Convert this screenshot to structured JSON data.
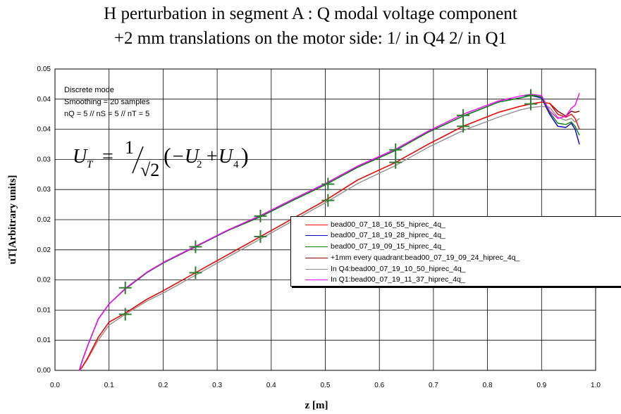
{
  "title_line1": "H perturbation in segment A : Q modal voltage component",
  "title_line2": "+2 mm translations on the motor side: 1/ in Q4 2/ in Q1",
  "notes": [
    "Discrete mode",
    "Smoothing = 20 samples",
    "nQ = 5 // nS = 5 // nT = 5"
  ],
  "formula": {
    "lhs": "U",
    "lhs_sub": "T",
    "eq": "=",
    "num": "1",
    "den": "√2",
    "body_open": "(",
    "minus": "−U",
    "sub2": "2",
    "plus": "+U",
    "sub4": "4",
    "body_close": ")"
  },
  "colors": {
    "red": "#ff0000",
    "blue": "#0000cc",
    "green": "#008000",
    "darkred": "#800000",
    "gray": "#909090",
    "magenta": "#ff00ff",
    "marker": "#2e7d32"
  },
  "chart_data": {
    "type": "line",
    "title": "H perturbation in segment A : Q modal voltage component\n+2 mm translations on the motor side: 1/ in Q4 2/ in Q1",
    "xlabel": "z [m]",
    "ylabel": "uT[Arbitrary units]",
    "xlim": [
      0.0,
      1.0
    ],
    "ylim": [
      0.0,
      0.05
    ],
    "x_ticks": [
      "0.0",
      "0.1",
      "0.2",
      "0.3",
      "0.4",
      "0.5",
      "0.6",
      "0.7",
      "0.8",
      "0.9",
      "1.0"
    ],
    "y_ticks": [
      "0.00",
      "0.01",
      "0.01",
      "0.02",
      "0.02",
      "0.02",
      "0.03",
      "0.03",
      "0.04",
      "0.04",
      "0.05"
    ],
    "grid": true,
    "legend_position": "right",
    "series": [
      {
        "name": "bead00_07_18_16_55_hiprec_4q_",
        "color": "red",
        "x": [
          0.045,
          0.05,
          0.06,
          0.08,
          0.1,
          0.13,
          0.17,
          0.2,
          0.26,
          0.32,
          0.38,
          0.44,
          0.5,
          0.56,
          0.63,
          0.69,
          0.755,
          0.82,
          0.86,
          0.88,
          0.9,
          0.915,
          0.93,
          0.945,
          0.955,
          0.962,
          0.97
        ],
        "y": [
          0.0,
          0.0005,
          0.002,
          0.0055,
          0.008,
          0.0095,
          0.0118,
          0.0132,
          0.0162,
          0.0192,
          0.0222,
          0.0252,
          0.0282,
          0.0316,
          0.0345,
          0.0375,
          0.0405,
          0.0428,
          0.0438,
          0.0442,
          0.0445,
          0.0443,
          0.0425,
          0.042,
          0.0425,
          0.0418,
          0.04
        ]
      },
      {
        "name": "bead00_07_18_19_28_hiprec_4q_",
        "color": "blue",
        "x": [
          0.045,
          0.05,
          0.06,
          0.08,
          0.1,
          0.13,
          0.17,
          0.2,
          0.26,
          0.32,
          0.38,
          0.44,
          0.5,
          0.56,
          0.63,
          0.69,
          0.755,
          0.82,
          0.86,
          0.88,
          0.9,
          0.915,
          0.93,
          0.945,
          0.955,
          0.962,
          0.97
        ],
        "y": [
          0.0,
          0.0015,
          0.004,
          0.0085,
          0.011,
          0.0135,
          0.0162,
          0.0178,
          0.0205,
          0.0232,
          0.0255,
          0.0282,
          0.0308,
          0.0337,
          0.0365,
          0.0395,
          0.0422,
          0.0445,
          0.0452,
          0.0456,
          0.0452,
          0.0425,
          0.0405,
          0.0403,
          0.041,
          0.04,
          0.0375
        ]
      },
      {
        "name": "bead00_07_19_09_15_hiprec_4q_",
        "color": "green",
        "x": [
          0.045,
          0.05,
          0.06,
          0.08,
          0.1,
          0.13,
          0.17,
          0.2,
          0.26,
          0.32,
          0.38,
          0.44,
          0.5,
          0.56,
          0.63,
          0.69,
          0.755,
          0.82,
          0.86,
          0.88,
          0.9,
          0.915,
          0.93,
          0.945,
          0.955,
          0.962,
          0.97
        ],
        "y": [
          0.0,
          0.0015,
          0.004,
          0.0085,
          0.011,
          0.0135,
          0.0162,
          0.0178,
          0.0205,
          0.0232,
          0.0255,
          0.0282,
          0.0308,
          0.0337,
          0.0365,
          0.0395,
          0.0422,
          0.0445,
          0.0452,
          0.0456,
          0.0454,
          0.0428,
          0.041,
          0.0408,
          0.0412,
          0.0405,
          0.039
        ]
      },
      {
        "name": "+1mm every quadrant:bead00_07_19_09_24_hiprec_4q_",
        "color": "darkred",
        "x": [
          0.045,
          0.05,
          0.06,
          0.08,
          0.1,
          0.13,
          0.17,
          0.2,
          0.26,
          0.32,
          0.38,
          0.44,
          0.5,
          0.56,
          0.63,
          0.69,
          0.755,
          0.82,
          0.86,
          0.88,
          0.9,
          0.915,
          0.93,
          0.945,
          0.955,
          0.962,
          0.97
        ],
        "y": [
          0.0,
          0.0005,
          0.002,
          0.0055,
          0.008,
          0.0095,
          0.0118,
          0.0132,
          0.0162,
          0.0192,
          0.0222,
          0.0252,
          0.0282,
          0.0316,
          0.0345,
          0.0375,
          0.0405,
          0.0428,
          0.0438,
          0.0442,
          0.0445,
          0.0443,
          0.043,
          0.0422,
          0.043,
          0.0428,
          0.043
        ]
      },
      {
        "name": "In Q4:bead00_07_19_10_50_hiprec_4q_",
        "color": "gray",
        "x": [
          0.045,
          0.05,
          0.06,
          0.08,
          0.1,
          0.13,
          0.17,
          0.2,
          0.26,
          0.32,
          0.38,
          0.44,
          0.5,
          0.56,
          0.63,
          0.69,
          0.755,
          0.82,
          0.86,
          0.88,
          0.9,
          0.915,
          0.93,
          0.945,
          0.955,
          0.962,
          0.97
        ],
        "y": [
          0.0,
          0.0005,
          0.0018,
          0.005,
          0.0075,
          0.0093,
          0.0115,
          0.0128,
          0.0158,
          0.0188,
          0.0218,
          0.0248,
          0.0278,
          0.031,
          0.034,
          0.037,
          0.0398,
          0.042,
          0.0432,
          0.0436,
          0.0438,
          0.0436,
          0.042,
          0.0415,
          0.0418,
          0.0412,
          0.0418
        ]
      },
      {
        "name": "In Q1:bead00_07_19_11_37_hiprec_4q_",
        "color": "magenta",
        "x": [
          0.045,
          0.05,
          0.06,
          0.08,
          0.1,
          0.13,
          0.17,
          0.2,
          0.26,
          0.32,
          0.38,
          0.44,
          0.5,
          0.56,
          0.63,
          0.69,
          0.755,
          0.82,
          0.86,
          0.88,
          0.9,
          0.915,
          0.93,
          0.945,
          0.955,
          0.962,
          0.97
        ],
        "y": [
          0.0,
          0.0015,
          0.004,
          0.0085,
          0.011,
          0.0136,
          0.0163,
          0.0179,
          0.0206,
          0.0233,
          0.0257,
          0.0284,
          0.031,
          0.0339,
          0.0367,
          0.0397,
          0.0425,
          0.0447,
          0.0455,
          0.0458,
          0.0456,
          0.043,
          0.0418,
          0.0422,
          0.0435,
          0.044,
          0.046
        ]
      }
    ],
    "markers": {
      "x": [
        0.13,
        0.13,
        0.26,
        0.26,
        0.38,
        0.38,
        0.505,
        0.505,
        0.63,
        0.63,
        0.755,
        0.755,
        0.88,
        0.88
      ],
      "y": [
        0.0137,
        0.0093,
        0.0205,
        0.0162,
        0.0256,
        0.0222,
        0.0309,
        0.0282,
        0.0366,
        0.0345,
        0.0423,
        0.0405,
        0.0456,
        0.0442
      ]
    }
  }
}
